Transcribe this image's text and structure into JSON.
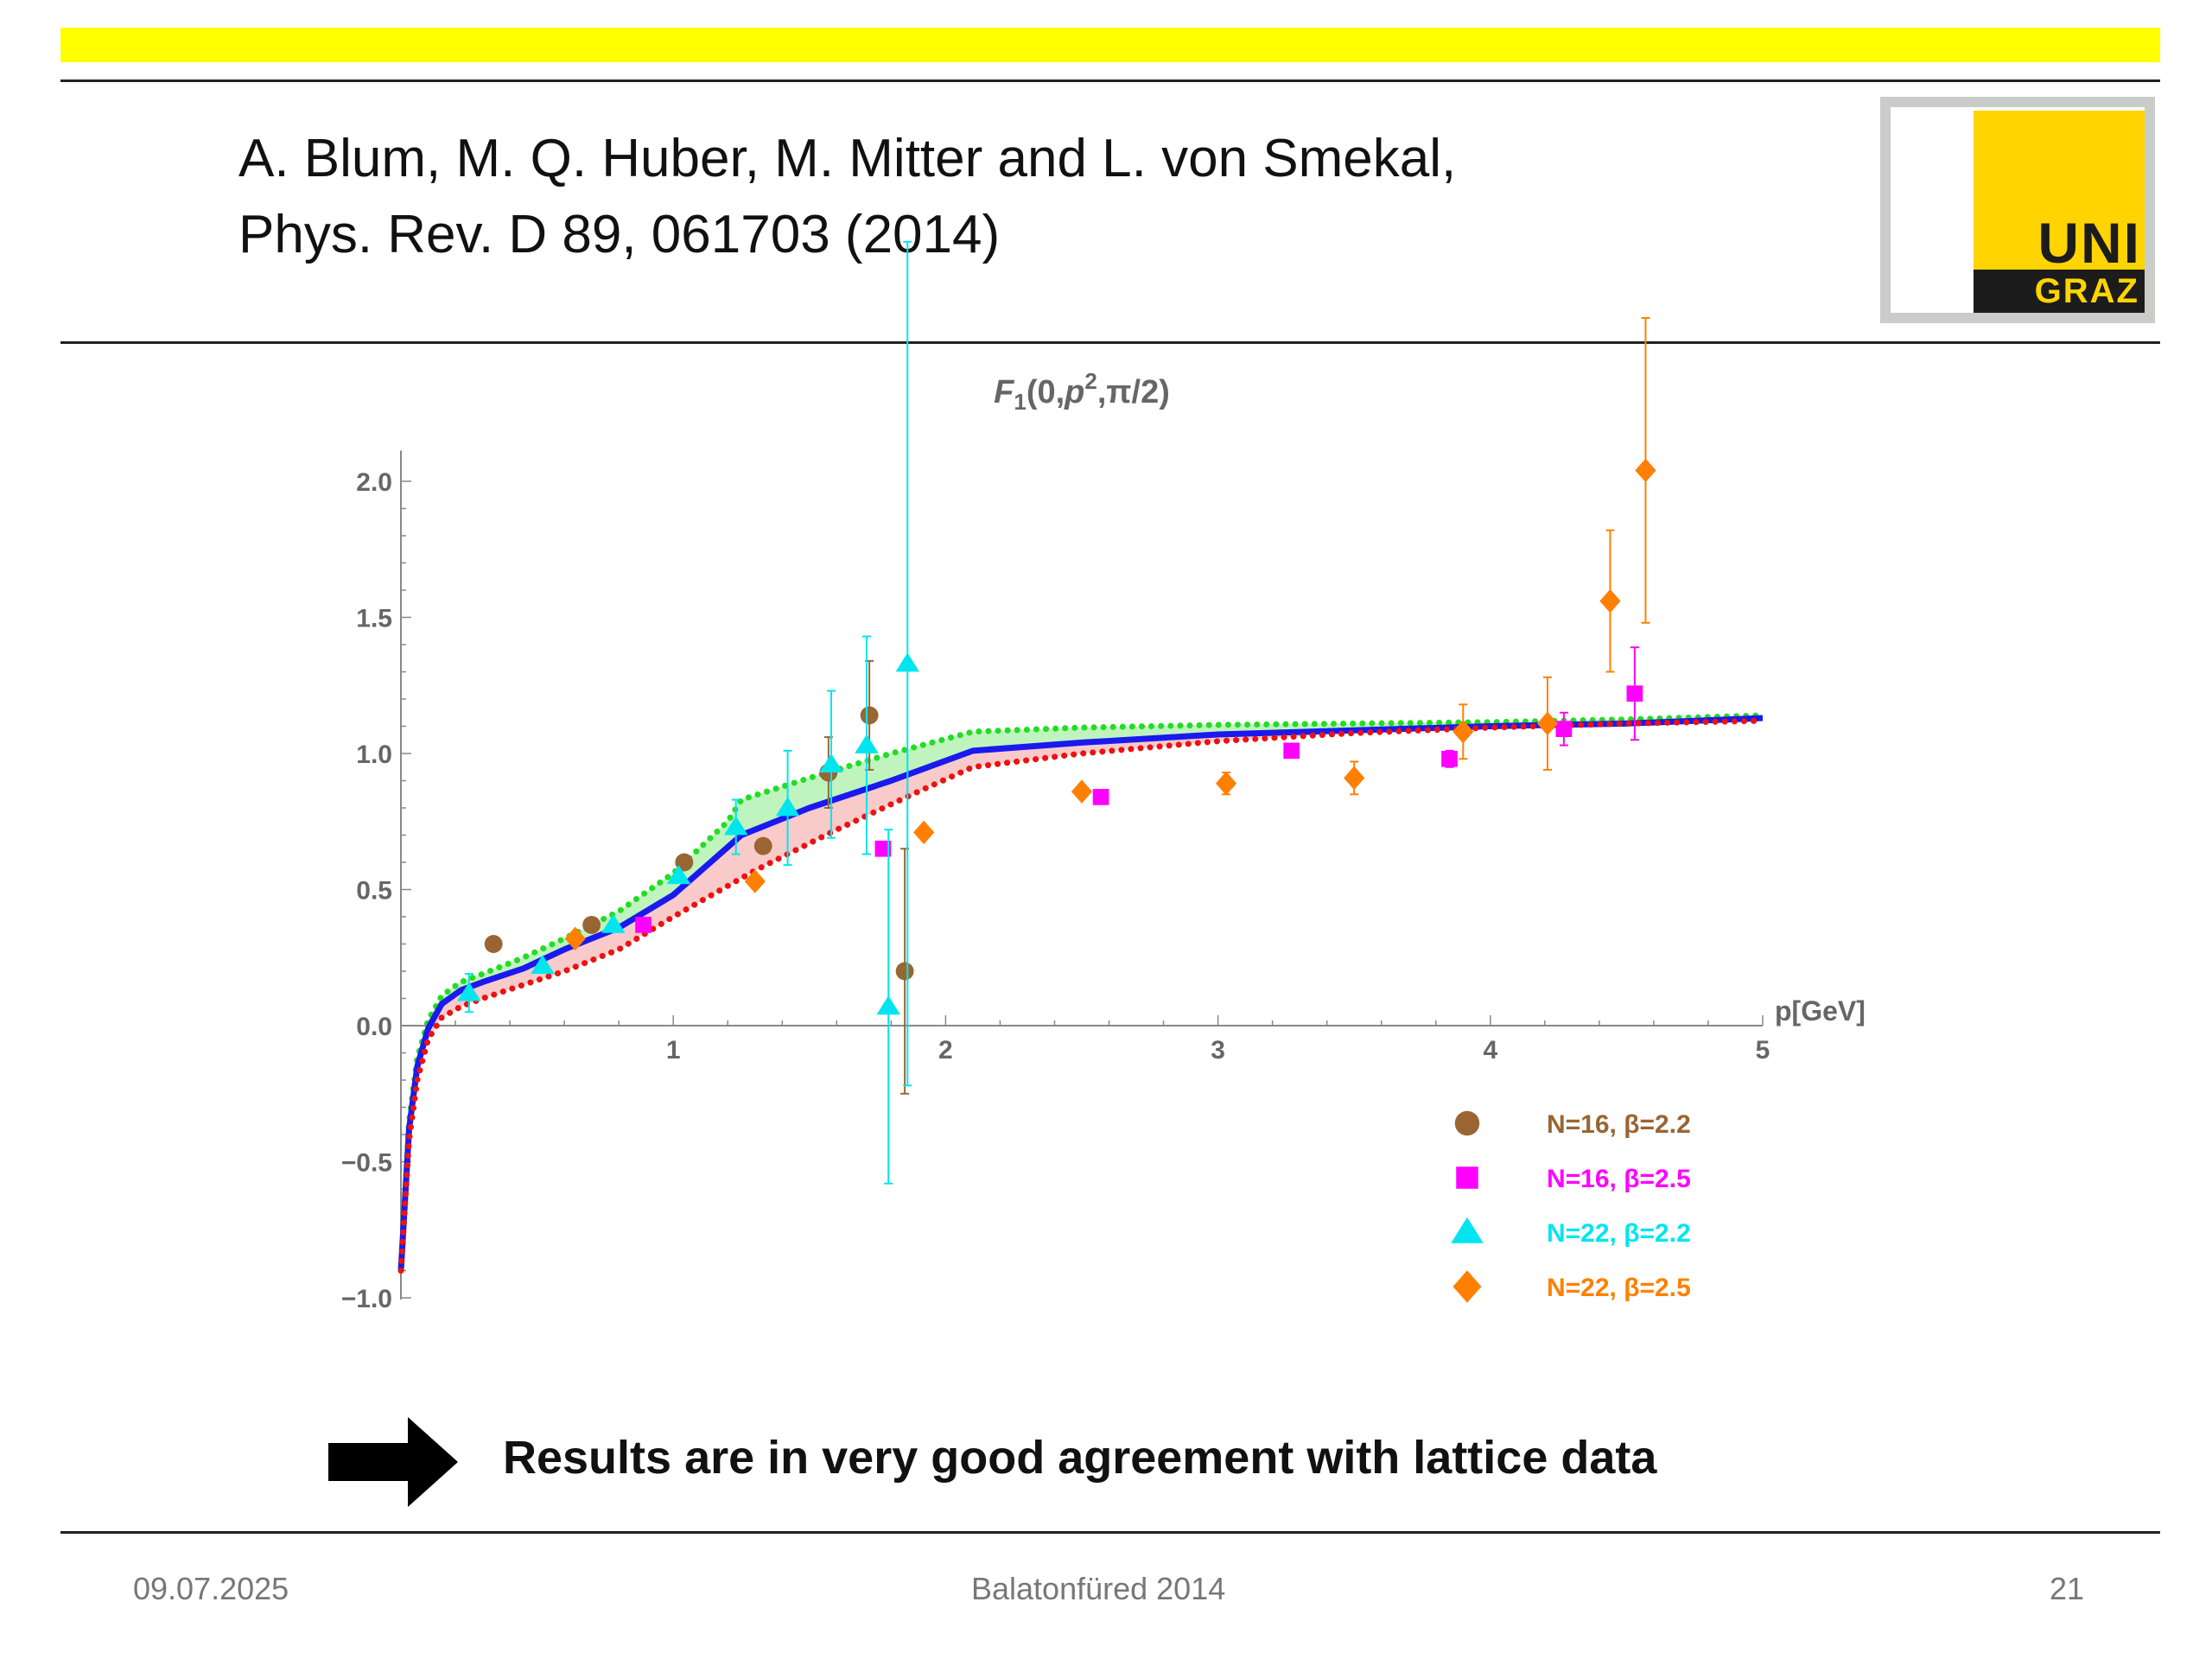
{
  "header": {
    "citation_line1": "A.  Blum, M. Q. Huber, M. Mitter and L. von Smekal,",
    "citation_line2": "Phys. Rev. D 89, 061703 (2014)"
  },
  "logo": {
    "line1": "UNI",
    "line2": "GRAZ"
  },
  "colors": {
    "accent_bar": "#ffff00",
    "logo_yellow": "#ffd400"
  },
  "conclusion": {
    "text": "Results are in very good agreement with lattice data",
    "icon": "right-arrow-icon"
  },
  "footer": {
    "date": "09.07.2025",
    "event": "Balatonfüred 2014",
    "page": "21"
  },
  "chart_data": {
    "type": "scatter",
    "title": "F1(0,p2,π/2)",
    "title_parts": {
      "func": "F",
      "sub": "1",
      "args_a": "(0,",
      "var": "p",
      "sup": "2",
      "args_b": ",π/2)"
    },
    "xlabel": "p[GeV]",
    "ylabel": "",
    "xlim": [
      0,
      5
    ],
    "ylim": [
      -1.0,
      2.1
    ],
    "xticks": [
      {
        "v": 1,
        "label": "1"
      },
      {
        "v": 2,
        "label": "2"
      },
      {
        "v": 3,
        "label": "3"
      },
      {
        "v": 4,
        "label": "4"
      },
      {
        "v": 5,
        "label": "5"
      }
    ],
    "yticks": [
      {
        "v": 2.0,
        "label": "2.0"
      },
      {
        "v": 1.5,
        "label": "1.5"
      },
      {
        "v": 1.0,
        "label": "1.0"
      },
      {
        "v": 0.5,
        "label": "0.5"
      },
      {
        "v": 0.0,
        "label": "0.0"
      },
      {
        "v": -0.5,
        "label": "−0.5"
      },
      {
        "v": -1.0,
        "label": "−1.0"
      }
    ],
    "grid": false,
    "legend_position": "bottom-right",
    "curves": [
      {
        "color": "#22dd22",
        "style": "dotted",
        "x": [
          0.0,
          0.03,
          0.06,
          0.1,
          0.15,
          0.22,
          0.3,
          0.45,
          0.6,
          0.8,
          1.0,
          1.2,
          1.25,
          1.5,
          1.8,
          2.1,
          2.5,
          3.0,
          3.5,
          4.0,
          4.5,
          5.0
        ],
        "y": [
          -0.9,
          -0.35,
          -0.12,
          0.02,
          0.11,
          0.16,
          0.19,
          0.25,
          0.32,
          0.42,
          0.56,
          0.75,
          0.83,
          0.91,
          1.0,
          1.08,
          1.095,
          1.105,
          1.11,
          1.115,
          1.125,
          1.14
        ]
      },
      {
        "color": "#1a1aee",
        "style": "solid",
        "x": [
          0.0,
          0.03,
          0.06,
          0.1,
          0.15,
          0.22,
          0.3,
          0.45,
          0.6,
          0.8,
          1.0,
          1.25,
          1.5,
          1.8,
          2.1,
          2.5,
          3.0,
          3.5,
          4.0,
          4.5,
          5.0
        ],
        "y": [
          -0.9,
          -0.38,
          -0.15,
          -0.01,
          0.08,
          0.13,
          0.16,
          0.21,
          0.28,
          0.36,
          0.48,
          0.7,
          0.8,
          0.9,
          1.01,
          1.04,
          1.07,
          1.085,
          1.1,
          1.11,
          1.13
        ]
      },
      {
        "color": "#ee1111",
        "style": "dotted",
        "x": [
          0.0,
          0.03,
          0.06,
          0.1,
          0.15,
          0.22,
          0.3,
          0.45,
          0.6,
          0.8,
          1.0,
          1.3,
          1.6,
          1.9,
          2.1,
          2.5,
          3.0,
          3.5,
          4.0,
          4.5,
          5.0
        ],
        "y": [
          -0.9,
          -0.42,
          -0.2,
          -0.05,
          0.03,
          0.07,
          0.1,
          0.15,
          0.2,
          0.28,
          0.4,
          0.57,
          0.72,
          0.86,
          0.95,
          1.0,
          1.045,
          1.075,
          1.095,
          1.11,
          1.12
        ]
      }
    ],
    "band_colors": {
      "upper": "#aaf0aa",
      "lower": "#f6b8b8"
    },
    "series": [
      {
        "name": "N=16, β=2.2",
        "color": "#996633",
        "marker": "circle",
        "points": [
          [
            0.34,
            0.3,
            0.0
          ],
          [
            0.7,
            0.37,
            0.0
          ],
          [
            1.04,
            0.6,
            0.0
          ],
          [
            1.33,
            0.66,
            0.0
          ],
          [
            1.57,
            0.93,
            0.13
          ],
          [
            1.72,
            1.14,
            0.2
          ],
          [
            1.85,
            0.2,
            0.45
          ]
        ]
      },
      {
        "name": "N=16, β=2.5",
        "color": "#ff00ff",
        "marker": "square",
        "points": [
          [
            0.89,
            0.37,
            0.0
          ],
          [
            1.77,
            0.65,
            0.0
          ],
          [
            2.57,
            0.84,
            0.0
          ],
          [
            3.27,
            1.01,
            0.0
          ],
          [
            3.85,
            0.98,
            0.03
          ],
          [
            4.27,
            1.09,
            0.06
          ],
          [
            4.53,
            1.22,
            0.17
          ]
        ]
      },
      {
        "name": "N=22, β=2.2",
        "color": "#00e5ee",
        "marker": "triangle",
        "points": [
          [
            0.25,
            0.12,
            0.07
          ],
          [
            0.52,
            0.22,
            0.0
          ],
          [
            0.78,
            0.37,
            0.0
          ],
          [
            1.02,
            0.55,
            0.0
          ],
          [
            1.23,
            0.73,
            0.1
          ],
          [
            1.42,
            0.8,
            0.21
          ],
          [
            1.58,
            0.96,
            0.27
          ],
          [
            1.71,
            1.03,
            0.4
          ],
          [
            1.79,
            0.07,
            0.65
          ],
          [
            1.86,
            1.33,
            1.55
          ]
        ]
      },
      {
        "name": "N=22, β=2.5",
        "color": "#ff8000",
        "marker": "diamond",
        "points": [
          [
            0.64,
            0.32,
            0.0
          ],
          [
            1.3,
            0.53,
            0.0
          ],
          [
            1.92,
            0.71,
            0.0
          ],
          [
            2.5,
            0.86,
            0.0
          ],
          [
            3.03,
            0.89,
            0.04
          ],
          [
            3.5,
            0.91,
            0.06
          ],
          [
            3.9,
            1.08,
            0.1
          ],
          [
            4.21,
            1.11,
            0.17
          ],
          [
            4.44,
            1.56,
            0.26
          ],
          [
            4.57,
            2.04,
            0.56
          ]
        ]
      }
    ]
  }
}
